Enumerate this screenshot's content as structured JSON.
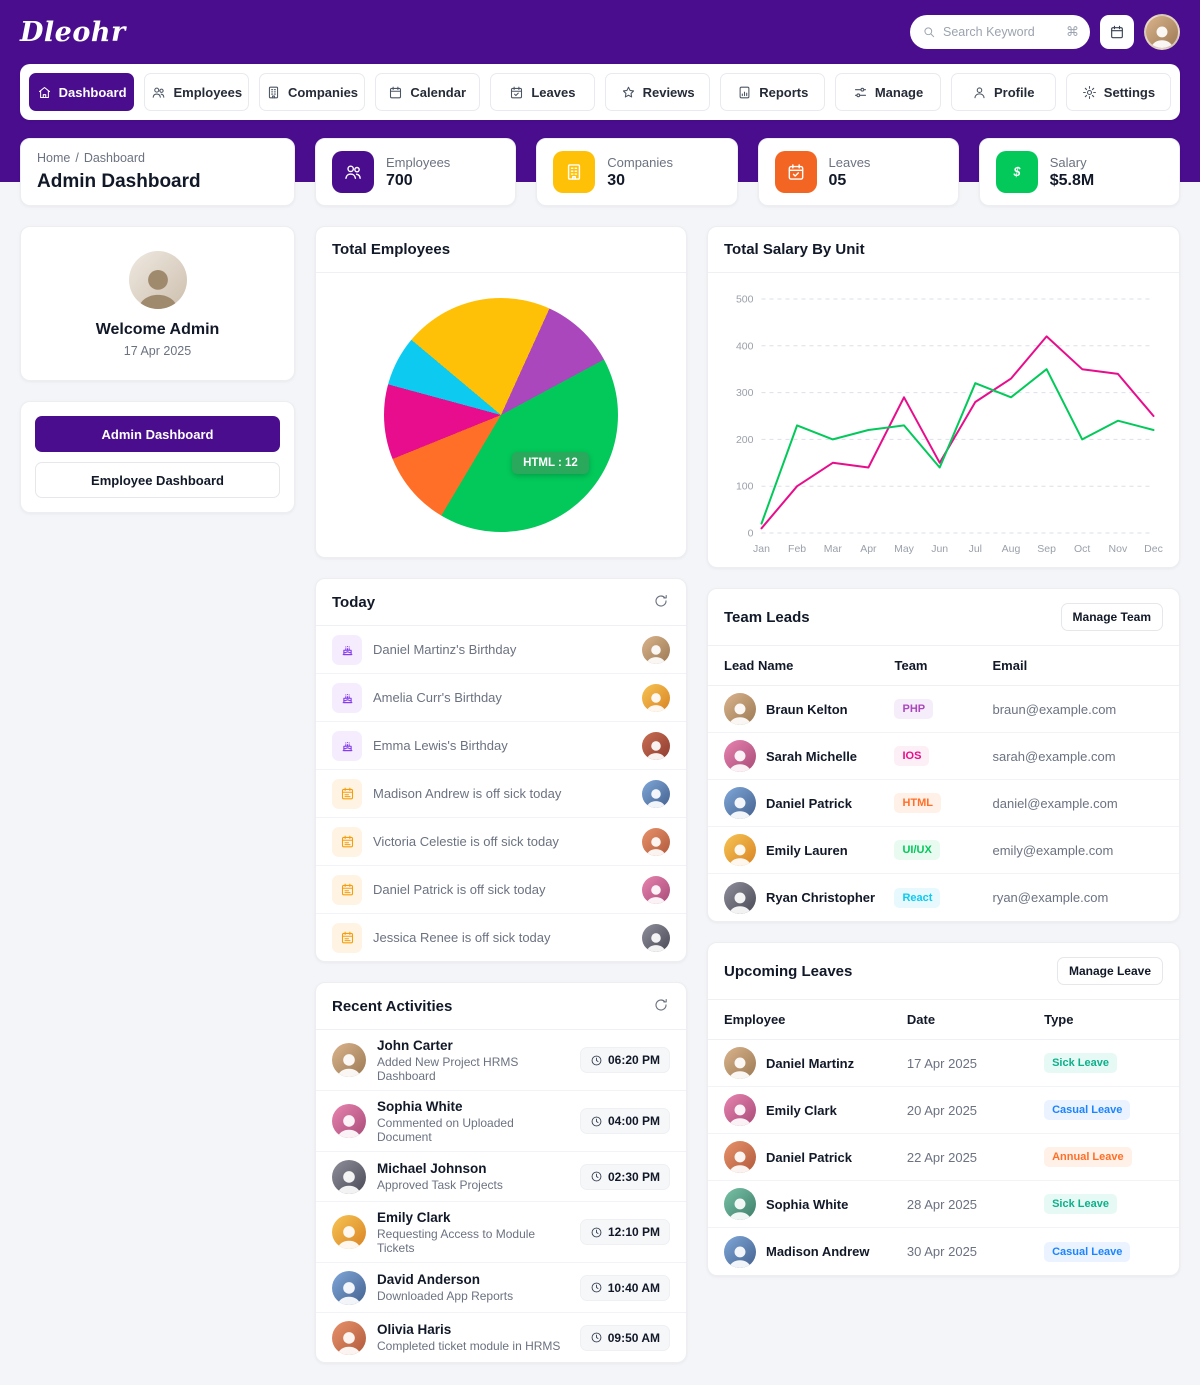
{
  "brand": {
    "logo": "Dleohr"
  },
  "topbar": {
    "search_placeholder": "Search Keyword",
    "search_shortcut": "⌘"
  },
  "nav": {
    "items": [
      {
        "label": "Dashboard",
        "icon": "home"
      },
      {
        "label": "Employees",
        "icon": "users"
      },
      {
        "label": "Companies",
        "icon": "building"
      },
      {
        "label": "Calendar",
        "icon": "calendar"
      },
      {
        "label": "Leaves",
        "icon": "calendar-check"
      },
      {
        "label": "Reviews",
        "icon": "star"
      },
      {
        "label": "Reports",
        "icon": "report"
      },
      {
        "label": "Manage",
        "icon": "sliders"
      },
      {
        "label": "Profile",
        "icon": "user"
      },
      {
        "label": "Settings",
        "icon": "gear"
      }
    ]
  },
  "breadcrumb": {
    "home": "Home",
    "sep": "/",
    "current": "Dashboard",
    "title": "Admin Dashboard"
  },
  "stats": [
    {
      "label": "Employees",
      "value": "700"
    },
    {
      "label": "Companies",
      "value": "30"
    },
    {
      "label": "Leaves",
      "value": "05"
    },
    {
      "label": "Salary",
      "value": "$5.8M"
    }
  ],
  "welcome": {
    "title": "Welcome Admin",
    "date": "17 Apr 2025"
  },
  "switch": {
    "admin": "Admin Dashboard",
    "employee": "Employee Dashboard"
  },
  "today": {
    "title": "Today",
    "items": [
      {
        "text": "Daniel Martinz's  Birthday",
        "type": "birthday"
      },
      {
        "text": "Amelia Curr's  Birthday",
        "type": "birthday"
      },
      {
        "text": "Emma Lewis's  Birthday",
        "type": "birthday"
      },
      {
        "text": "Madison Andrew is off sick today",
        "type": "sick"
      },
      {
        "text": "Victoria Celestie is off sick today",
        "type": "sick"
      },
      {
        "text": "Daniel Patrick is off sick today",
        "type": "sick"
      },
      {
        "text": "Jessica Renee is off sick today",
        "type": "sick"
      }
    ]
  },
  "team_leads": {
    "title": "Team Leads",
    "action": "Manage Team",
    "headers": [
      "Lead Name",
      "Team",
      "Email"
    ],
    "rows": [
      {
        "name": "Braun Kelton",
        "team": "PHP",
        "email": "braun@example.com"
      },
      {
        "name": "Sarah Michelle",
        "team": "IOS",
        "email": "sarah@example.com"
      },
      {
        "name": "Daniel Patrick",
        "team": "HTML",
        "email": "daniel@example.com"
      },
      {
        "name": "Emily Lauren",
        "team": "UI/UX",
        "email": "emily@example.com"
      },
      {
        "name": "Ryan Christopher",
        "team": "React",
        "email": "ryan@example.com"
      }
    ]
  },
  "recent": {
    "title": "Recent Activities",
    "items": [
      {
        "name": "John Carter",
        "action": "Added New Project HRMS Dashboard",
        "time": "06:20 PM"
      },
      {
        "name": "Sophia White",
        "action": "Commented on Uploaded Document",
        "time": "04:00 PM"
      },
      {
        "name": "Michael Johnson",
        "action": "Approved Task Projects",
        "time": "02:30 PM"
      },
      {
        "name": "Emily Clark",
        "action": "Requesting Access to Module Tickets",
        "time": "12:10 PM"
      },
      {
        "name": "David Anderson",
        "action": "Downloaded App Reports",
        "time": "10:40 AM"
      },
      {
        "name": "Olivia Haris",
        "action": "Completed ticket module in HRMS",
        "time": "09:50 AM"
      }
    ]
  },
  "leaves": {
    "title": "Upcoming Leaves",
    "action": "Manage Leave",
    "headers": [
      "Employee",
      "Date",
      "Type"
    ],
    "rows": [
      {
        "name": "Daniel Martinz",
        "date": "17 Apr 2025",
        "type": "Sick Leave"
      },
      {
        "name": "Emily Clark",
        "date": "20 Apr 2025",
        "type": "Casual Leave"
      },
      {
        "name": "Daniel Patrick",
        "date": "22 Apr 2025",
        "type": "Annual Leave"
      },
      {
        "name": "Sophia White",
        "date": "28 Apr 2025",
        "type": "Sick Leave"
      },
      {
        "name": "Madison Andrew",
        "date": "30 Apr 2025",
        "type": "Casual Leave"
      }
    ]
  },
  "chart_data": [
    {
      "type": "pie",
      "title": "Total Employees",
      "start_angle": -50,
      "slices": [
        {
          "label": "",
          "value": 6,
          "color": "#FFC107"
        },
        {
          "label": "",
          "value": 3,
          "color": "#AB47BC"
        },
        {
          "label": "HTML",
          "value": 12,
          "color": "#03C95A"
        },
        {
          "label": "",
          "value": 3,
          "color": "#FF6F28"
        },
        {
          "label": "",
          "value": 3,
          "color": "#E70D8C"
        },
        {
          "label": "",
          "value": 2,
          "color": "#0DCAF0"
        }
      ],
      "tooltip": "HTML : 12",
      "legend": "none"
    },
    {
      "type": "line",
      "title": "Total Salary By Unit",
      "x": [
        "Jan",
        "Feb",
        "Mar",
        "Apr",
        "May",
        "Jun",
        "Jul",
        "Aug",
        "Sep",
        "Oct",
        "Nov",
        "Dec"
      ],
      "ylim": [
        0,
        500
      ],
      "yticks": [
        0,
        100,
        200,
        300,
        400,
        500
      ],
      "grid": "dashed-horizontal",
      "legend": "none",
      "series": [
        {
          "name": "series-pink",
          "color": "#E70D8C",
          "values": [
            10,
            100,
            150,
            140,
            290,
            150,
            280,
            330,
            420,
            350,
            340,
            250
          ]
        },
        {
          "name": "series-green",
          "color": "#03C95A",
          "values": [
            20,
            230,
            200,
            220,
            230,
            140,
            320,
            290,
            350,
            200,
            240,
            220
          ]
        }
      ]
    }
  ],
  "theme": {
    "header_purple": "#4A0D8E",
    "green": "#03C95A",
    "pink": "#E70D8C",
    "orange": "#FF6F28",
    "amber": "#FFC107",
    "cyan": "#0DCAF0",
    "violet": "#AB47BC",
    "blue": "#1B84FF",
    "tile_orange": "#F26522",
    "birthday_purple": "#8338EC",
    "sick_amber": "#F59E0B",
    "tooltip_green": "#2AA85C",
    "page_bg": "#F4F5F8",
    "card_border": "#ECEEF2",
    "text_dark": "#111827",
    "text_gray": "#6B7280"
  }
}
